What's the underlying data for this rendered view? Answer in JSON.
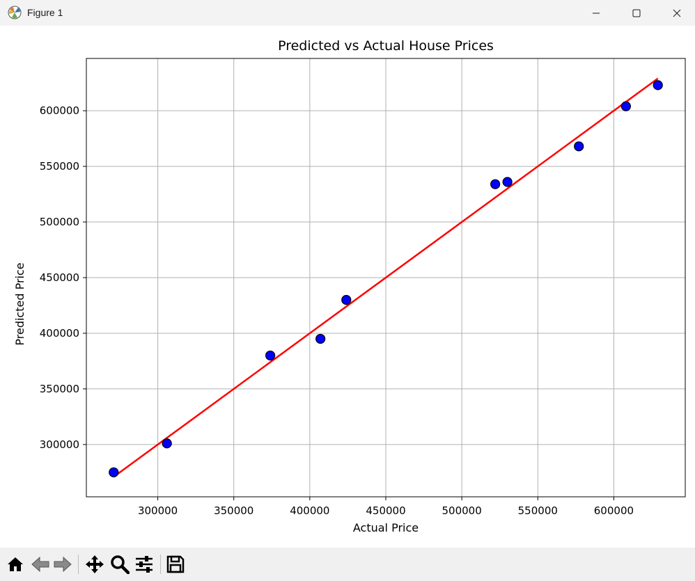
{
  "window": {
    "title": "Figure 1",
    "icons": {
      "app": "matplotlib-icon",
      "minimize": "minimize-icon",
      "maximize": "maximize-icon",
      "close": "close-icon"
    }
  },
  "toolbar": {
    "buttons": [
      {
        "name": "home-icon"
      },
      {
        "name": "back-icon"
      },
      {
        "name": "forward-icon"
      },
      {
        "name": "pan-icon"
      },
      {
        "name": "zoom-icon"
      },
      {
        "name": "configure-subplots-icon"
      },
      {
        "name": "save-icon"
      }
    ]
  },
  "chart_data": {
    "type": "scatter",
    "title": "Predicted vs Actual House Prices",
    "xlabel": "Actual Price",
    "ylabel": "Predicted Price",
    "xlim": [
      253000,
      647000
    ],
    "ylim": [
      253000,
      647000
    ],
    "xticks": [
      300000,
      350000,
      400000,
      450000,
      500000,
      550000,
      600000
    ],
    "yticks": [
      300000,
      350000,
      400000,
      450000,
      500000,
      550000,
      600000
    ],
    "grid": true,
    "points": {
      "x": [
        271000,
        306000,
        374000,
        407000,
        424000,
        522000,
        530000,
        577000,
        608000,
        629000
      ],
      "y": [
        275000,
        301000,
        380000,
        395000,
        430000,
        534000,
        536000,
        568000,
        604000,
        623000
      ],
      "color": "#0000ff",
      "edgecolor": "#000000"
    },
    "reference_line": {
      "x": [
        271000,
        629000
      ],
      "y": [
        271000,
        629000
      ],
      "color": "#ff0000"
    }
  }
}
